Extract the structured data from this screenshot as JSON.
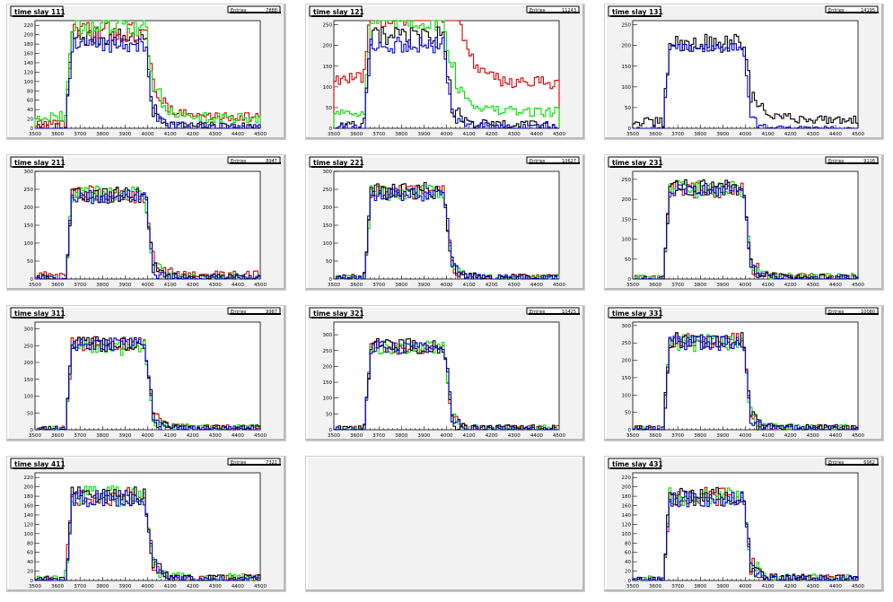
{
  "colors": {
    "black": "#000000",
    "red": "#d40000",
    "green": "#00e000",
    "blue": "#0000d6"
  },
  "stats_label": "Entries",
  "x_ticks": [
    "3500",
    "3600",
    "3700",
    "3800",
    "3900",
    "4000",
    "4100",
    "4200",
    "4300",
    "4400",
    "4500"
  ],
  "chart_data": [
    {
      "type": "histogram",
      "title": "time slay 111",
      "entries": "7888",
      "xlim": [
        3500,
        4500
      ],
      "ylim": [
        0,
        230
      ],
      "y_ticks": [
        "0",
        "20",
        "40",
        "60",
        "80",
        "100",
        "120",
        "140",
        "160",
        "180",
        "200",
        "220"
      ],
      "series": [
        {
          "color": "black",
          "shape": {
            "base": 0,
            "plateau": 195,
            "tail": 4,
            "noise": 20
          }
        },
        {
          "color": "red",
          "shape": {
            "base": 10,
            "plateau": 205,
            "tail": 25,
            "noise": 22
          }
        },
        {
          "color": "green",
          "shape": {
            "base": 25,
            "plateau": 215,
            "tail": 22,
            "noise": 22
          }
        },
        {
          "color": "blue",
          "shape": {
            "base": 0,
            "plateau": 180,
            "tail": 2,
            "noise": 18
          }
        }
      ]
    },
    {
      "type": "histogram",
      "title": "time slay 121",
      "entries": "11243",
      "xlim": [
        3500,
        4500
      ],
      "ylim": [
        0,
        260
      ],
      "y_ticks": [
        "0",
        "50",
        "100",
        "150",
        "200",
        "250"
      ],
      "series": [
        {
          "color": "red",
          "shape": {
            "base": 120,
            "plateau": 270,
            "tail": 110,
            "noise": 30
          }
        },
        {
          "color": "green",
          "shape": {
            "base": 40,
            "plateau": 260,
            "tail": 40,
            "noise": 25
          }
        },
        {
          "color": "black",
          "shape": {
            "base": 5,
            "plateau": 220,
            "tail": 8,
            "noise": 25
          }
        },
        {
          "color": "blue",
          "shape": {
            "base": 0,
            "plateau": 200,
            "tail": 3,
            "noise": 20
          }
        }
      ]
    },
    {
      "type": "histogram",
      "title": "time slay 131",
      "entries": "14195",
      "xlim": [
        3500,
        4500
      ],
      "ylim": [
        0,
        260
      ],
      "y_ticks": [
        "0",
        "50",
        "100",
        "150",
        "200",
        "250"
      ],
      "series": [
        {
          "color": "black",
          "shape": {
            "base": 15,
            "plateau": 205,
            "tail": 22,
            "noise": 22
          }
        },
        {
          "color": "blue",
          "shape": {
            "base": 0,
            "plateau": 195,
            "tail": 0,
            "noise": 10
          }
        }
      ]
    },
    {
      "type": "histogram",
      "title": "time slay 211",
      "entries": "8947",
      "xlim": [
        3500,
        4500
      ],
      "ylim": [
        0,
        300
      ],
      "y_ticks": [
        "0",
        "50",
        "100",
        "150",
        "200",
        "250",
        "300"
      ],
      "series": [
        {
          "color": "red",
          "shape": {
            "base": 8,
            "plateau": 235,
            "tail": 10,
            "noise": 25
          }
        },
        {
          "color": "green",
          "shape": {
            "base": 0,
            "plateau": 235,
            "tail": 4,
            "noise": 25
          }
        },
        {
          "color": "black",
          "shape": {
            "base": 0,
            "plateau": 235,
            "tail": 3,
            "noise": 22
          }
        },
        {
          "color": "blue",
          "shape": {
            "base": 0,
            "plateau": 230,
            "tail": 2,
            "noise": 20
          }
        }
      ]
    },
    {
      "type": "histogram",
      "title": "time slay 221",
      "entries": "10627",
      "xlim": [
        3500,
        4500
      ],
      "ylim": [
        0,
        300
      ],
      "y_ticks": [
        "0",
        "50",
        "100",
        "150",
        "200",
        "250",
        "300"
      ],
      "series": [
        {
          "color": "red",
          "shape": {
            "base": 0,
            "plateau": 240,
            "tail": 3,
            "noise": 22
          }
        },
        {
          "color": "green",
          "shape": {
            "base": 0,
            "plateau": 240,
            "tail": 3,
            "noise": 22
          }
        },
        {
          "color": "black",
          "shape": {
            "base": 0,
            "plateau": 245,
            "tail": 3,
            "noise": 25
          }
        },
        {
          "color": "blue",
          "shape": {
            "base": 0,
            "plateau": 235,
            "tail": 2,
            "noise": 20
          }
        }
      ]
    },
    {
      "type": "histogram",
      "title": "time slay 231",
      "entries": "9116",
      "xlim": [
        3500,
        4500
      ],
      "ylim": [
        0,
        270
      ],
      "y_ticks": [
        "0",
        "50",
        "100",
        "150",
        "200",
        "250"
      ],
      "series": [
        {
          "color": "red",
          "shape": {
            "base": 0,
            "plateau": 225,
            "tail": 4,
            "noise": 22
          }
        },
        {
          "color": "green",
          "shape": {
            "base": 0,
            "plateau": 225,
            "tail": 4,
            "noise": 22
          }
        },
        {
          "color": "black",
          "shape": {
            "base": 0,
            "plateau": 230,
            "tail": 3,
            "noise": 20
          }
        },
        {
          "color": "blue",
          "shape": {
            "base": 0,
            "plateau": 225,
            "tail": 2,
            "noise": 18
          }
        }
      ]
    },
    {
      "type": "histogram",
      "title": "time slay 311",
      "entries": "9987",
      "xlim": [
        3500,
        4500
      ],
      "ylim": [
        0,
        320
      ],
      "y_ticks": [
        "0",
        "50",
        "100",
        "150",
        "200",
        "250",
        "300"
      ],
      "series": [
        {
          "color": "red",
          "shape": {
            "base": 0,
            "plateau": 255,
            "tail": 4,
            "noise": 22
          }
        },
        {
          "color": "green",
          "shape": {
            "base": 0,
            "plateau": 245,
            "tail": 4,
            "noise": 25
          }
        },
        {
          "color": "black",
          "shape": {
            "base": 0,
            "plateau": 255,
            "tail": 3,
            "noise": 22
          }
        },
        {
          "color": "blue",
          "shape": {
            "base": 0,
            "plateau": 255,
            "tail": 2,
            "noise": 20
          }
        }
      ]
    },
    {
      "type": "histogram",
      "title": "time slay 321",
      "entries": "10425",
      "xlim": [
        3500,
        4500
      ],
      "ylim": [
        0,
        340
      ],
      "y_ticks": [
        "0",
        "50",
        "100",
        "150",
        "200",
        "250",
        "300"
      ],
      "series": [
        {
          "color": "red",
          "shape": {
            "base": 0,
            "plateau": 260,
            "tail": 4,
            "noise": 22
          }
        },
        {
          "color": "green",
          "shape": {
            "base": 0,
            "plateau": 260,
            "tail": 4,
            "noise": 22
          }
        },
        {
          "color": "black",
          "shape": {
            "base": 0,
            "plateau": 265,
            "tail": 3,
            "noise": 25
          }
        },
        {
          "color": "blue",
          "shape": {
            "base": 0,
            "plateau": 260,
            "tail": 2,
            "noise": 20
          }
        }
      ]
    },
    {
      "type": "histogram",
      "title": "time slay 331",
      "entries": "10080",
      "xlim": [
        3500,
        4500
      ],
      "ylim": [
        0,
        310
      ],
      "y_ticks": [
        "0",
        "50",
        "100",
        "150",
        "200",
        "250",
        "300"
      ],
      "series": [
        {
          "color": "red",
          "shape": {
            "base": 0,
            "plateau": 255,
            "tail": 4,
            "noise": 25
          }
        },
        {
          "color": "green",
          "shape": {
            "base": 0,
            "plateau": 250,
            "tail": 4,
            "noise": 25
          }
        },
        {
          "color": "black",
          "shape": {
            "base": 0,
            "plateau": 255,
            "tail": 3,
            "noise": 25
          }
        },
        {
          "color": "blue",
          "shape": {
            "base": 0,
            "plateau": 250,
            "tail": 2,
            "noise": 22
          }
        }
      ]
    },
    {
      "type": "histogram",
      "title": "time slay 411",
      "entries": "7321",
      "xlim": [
        3500,
        4500
      ],
      "ylim": [
        0,
        230
      ],
      "y_ticks": [
        "0",
        "20",
        "40",
        "60",
        "80",
        "100",
        "120",
        "140",
        "160",
        "180",
        "200",
        "220"
      ],
      "series": [
        {
          "color": "red",
          "shape": {
            "base": 0,
            "plateau": 180,
            "tail": 3,
            "noise": 20
          }
        },
        {
          "color": "green",
          "shape": {
            "base": 0,
            "plateau": 180,
            "tail": 4,
            "noise": 22
          }
        },
        {
          "color": "black",
          "shape": {
            "base": 0,
            "plateau": 180,
            "tail": 3,
            "noise": 20
          }
        },
        {
          "color": "blue",
          "shape": {
            "base": 0,
            "plateau": 175,
            "tail": 2,
            "noise": 18
          }
        }
      ]
    },
    null,
    {
      "type": "histogram",
      "title": "time slay 431",
      "entries": "6962",
      "xlim": [
        3500,
        4500
      ],
      "ylim": [
        0,
        230
      ],
      "y_ticks": [
        "0",
        "20",
        "40",
        "60",
        "80",
        "100",
        "120",
        "140",
        "160",
        "180",
        "200",
        "220"
      ],
      "series": [
        {
          "color": "red",
          "shape": {
            "base": 0,
            "plateau": 180,
            "tail": 3,
            "noise": 20
          }
        },
        {
          "color": "green",
          "shape": {
            "base": 0,
            "plateau": 180,
            "tail": 4,
            "noise": 20
          }
        },
        {
          "color": "black",
          "shape": {
            "base": 0,
            "plateau": 180,
            "tail": 3,
            "noise": 20
          }
        },
        {
          "color": "blue",
          "shape": {
            "base": 0,
            "plateau": 175,
            "tail": 2,
            "noise": 18
          }
        }
      ]
    }
  ]
}
